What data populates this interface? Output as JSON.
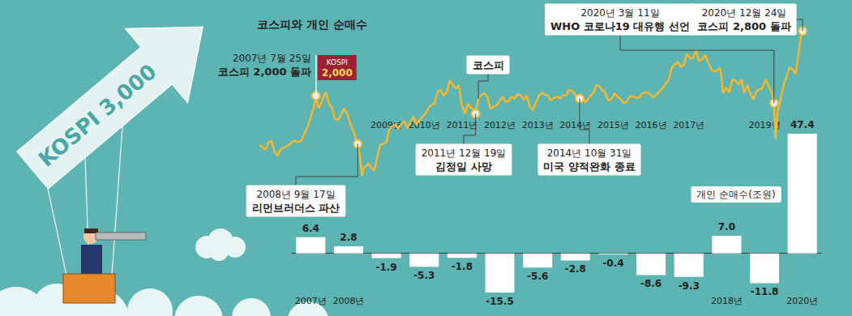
{
  "banner": "KOSPI 3,000",
  "chart_data": [
    {
      "type": "line",
      "title": "코스피와 개인 순매수",
      "color": "#f5b731",
      "x": [
        2006.0,
        2006.08,
        2006.17,
        2006.25,
        2006.33,
        2006.42,
        2006.5,
        2006.58,
        2006.67,
        2006.75,
        2006.83,
        2006.92,
        2007.0,
        2007.08,
        2007.17,
        2007.25,
        2007.33,
        2007.42,
        2007.5,
        2007.56,
        2007.62,
        2007.67,
        2007.75,
        2007.83,
        2007.92,
        2008.0,
        2008.08,
        2008.17,
        2008.25,
        2008.33,
        2008.42,
        2008.5,
        2008.58,
        2008.65,
        2008.71,
        2008.77,
        2008.83,
        2008.88,
        2008.94,
        2009.0,
        2009.08,
        2009.17,
        2009.25,
        2009.33,
        2009.42,
        2009.5,
        2009.58,
        2009.67,
        2009.75,
        2009.83,
        2009.92,
        2010.0,
        2010.08,
        2010.17,
        2010.25,
        2010.33,
        2010.42,
        2010.5,
        2010.58,
        2010.67,
        2010.75,
        2010.83,
        2010.92,
        2011.0,
        2011.08,
        2011.17,
        2011.25,
        2011.33,
        2011.42,
        2011.5,
        2011.58,
        2011.67,
        2011.75,
        2011.83,
        2011.92,
        2011.96,
        2012.04,
        2012.12,
        2012.21,
        2012.29,
        2012.37,
        2012.46,
        2012.54,
        2012.62,
        2012.71,
        2012.79,
        2012.87,
        2012.96,
        2013.04,
        2013.12,
        2013.21,
        2013.29,
        2013.37,
        2013.46,
        2013.54,
        2013.62,
        2013.71,
        2013.79,
        2013.87,
        2013.96,
        2014.04,
        2014.12,
        2014.21,
        2014.29,
        2014.37,
        2014.46,
        2014.54,
        2014.62,
        2014.71,
        2014.79,
        2014.83,
        2014.92,
        2014.98,
        2015.04,
        2015.12,
        2015.21,
        2015.29,
        2015.37,
        2015.46,
        2015.54,
        2015.62,
        2015.71,
        2015.79,
        2015.87,
        2015.96,
        2016.04,
        2016.12,
        2016.21,
        2016.29,
        2016.37,
        2016.46,
        2016.54,
        2016.62,
        2016.71,
        2016.79,
        2016.87,
        2016.96,
        2017.04,
        2017.12,
        2017.21,
        2017.29,
        2017.37,
        2017.46,
        2017.54,
        2017.62,
        2017.71,
        2017.79,
        2017.87,
        2017.96,
        2018.04,
        2018.12,
        2018.21,
        2018.29,
        2018.37,
        2018.46,
        2018.54,
        2018.62,
        2018.71,
        2018.79,
        2018.87,
        2018.96,
        2019.04,
        2019.12,
        2019.21,
        2019.29,
        2019.37,
        2019.46,
        2019.54,
        2019.62,
        2019.71,
        2019.79,
        2019.87,
        2019.96,
        2020.04,
        2020.12,
        2020.19,
        2020.23,
        2020.29,
        2020.37,
        2020.46,
        2020.54,
        2020.62,
        2020.71,
        2020.79,
        2020.87,
        2020.94,
        2020.98
      ],
      "values": [
        1380,
        1360,
        1330,
        1420,
        1440,
        1300,
        1250,
        1330,
        1350,
        1370,
        1390,
        1430,
        1435,
        1420,
        1450,
        1540,
        1610,
        1740,
        1850,
        2000,
        1850,
        1870,
        1960,
        2040,
        1900,
        1850,
        1710,
        1700,
        1760,
        1840,
        1780,
        1660,
        1570,
        1480,
        1400,
        1250,
        1000,
        1100,
        1120,
        1160,
        1100,
        1070,
        1230,
        1390,
        1400,
        1420,
        1580,
        1620,
        1640,
        1580,
        1660,
        1680,
        1590,
        1680,
        1740,
        1640,
        1700,
        1740,
        1780,
        1850,
        1890,
        1900,
        2050,
        2070,
        2000,
        2050,
        2190,
        2140,
        2090,
        2130,
        1880,
        1780,
        1900,
        1850,
        1830,
        1776,
        1960,
        2010,
        2030,
        1980,
        1840,
        1860,
        1880,
        1930,
        1990,
        1920,
        1930,
        1990,
        1960,
        2020,
        2000,
        1950,
        2000,
        1860,
        1820,
        1910,
        2000,
        2040,
        2010,
        2000,
        1940,
        1970,
        1990,
        1960,
        2010,
        2000,
        2070,
        2060,
        2020,
        1930,
        1964,
        1980,
        1915,
        1950,
        1990,
        2040,
        2130,
        2120,
        2070,
        2030,
        1940,
        1960,
        2030,
        1990,
        1960,
        1910,
        1920,
        1990,
        1990,
        1980,
        1970,
        2020,
        2040,
        2040,
        2010,
        1980,
        2020,
        2060,
        2090,
        2160,
        2200,
        2350,
        2390,
        2420,
        2360,
        2390,
        2520,
        2470,
        2470,
        2570,
        2430,
        2450,
        2510,
        2420,
        2330,
        2300,
        2320,
        2340,
        2030,
        2100,
        2040,
        2200,
        2190,
        2140,
        2200,
        2040,
        2130,
        2020,
        1960,
        2060,
        2080,
        2090,
        2200,
        2120,
        2050,
        1908,
        1460,
        1800,
        1960,
        2140,
        2250,
        2350,
        2330,
        2270,
        2540,
        2760,
        2806
      ],
      "xlim": [
        2006,
        2021
      ],
      "ylim": [
        900,
        2900
      ],
      "tick_labels": false,
      "grid": false,
      "annotations": [
        {
          "x": 2007.56,
          "y": 2000,
          "date": "2007년 7월 25일",
          "text": "코스피 2,000 돌파",
          "flag": [
            "KOSPI",
            "2,000"
          ]
        },
        {
          "x": 2008.71,
          "y": 1400,
          "date": "2008년 9월 17일",
          "text": "리먼브러더스 파산"
        },
        {
          "x": 2011.96,
          "y": 1776,
          "date": "2011년 12월 19일",
          "text": "김정일 사망"
        },
        {
          "x": 2014.83,
          "y": 1964,
          "date": "2014년 10월 31일",
          "text": "미국 양적완화 종료"
        },
        {
          "x": 2020.19,
          "y": 1908,
          "date": "2020년 3월 11일",
          "text": "WHO 코로나19 대유행 선언"
        },
        {
          "x": 2020.98,
          "y": 2806,
          "date": "2020년 12월 24일",
          "text": "코스피 2,800 돌파"
        },
        {
          "x": 2012.04,
          "y": 1960,
          "text": "코스피"
        }
      ]
    },
    {
      "type": "bar",
      "title": "개인 순매수(조원)",
      "color": "#ffffff",
      "categories": [
        "2007년",
        "2008년",
        "2009년",
        "2010년",
        "2011년",
        "2012년",
        "2013년",
        "2014년",
        "2015년",
        "2016년",
        "2017년",
        "2018년",
        "2019년",
        "2020년"
      ],
      "values": [
        6.4,
        2.8,
        -1.9,
        -5.3,
        -1.8,
        -15.5,
        -5.6,
        -2.8,
        -0.4,
        -8.6,
        -9.3,
        7.0,
        -11.8,
        47.4
      ],
      "value_labels": [
        "6.4",
        "2.8",
        "-1.9",
        "-5.3",
        "-1.8",
        "-15.5",
        "-5.6",
        "-2.8",
        "-0.4",
        "-8.6",
        "-9.3",
        "7.0",
        "-11.8",
        "47.4"
      ],
      "ylim": [
        -15.5,
        47.4
      ],
      "tick_labels": "x",
      "data_labels": true,
      "grid": false
    }
  ]
}
